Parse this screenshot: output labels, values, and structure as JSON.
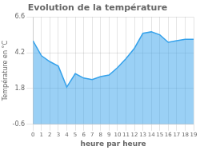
{
  "chart_data": {
    "type": "area",
    "title": "Evolution de la température",
    "x_label": "heure par heure",
    "y_label": "Température en °C",
    "x": [
      0,
      1,
      2,
      3,
      4,
      5,
      6,
      7,
      8,
      9,
      10,
      11,
      12,
      13,
      14,
      15,
      16,
      17,
      18,
      19
    ],
    "values": [
      5.0,
      4.0,
      3.6,
      3.3,
      1.9,
      2.8,
      2.5,
      2.4,
      2.6,
      2.7,
      3.2,
      3.8,
      4.5,
      5.5,
      5.6,
      5.4,
      4.9,
      5.0,
      5.1,
      5.1
    ],
    "xlim": [
      0,
      19
    ],
    "xticks": [
      0,
      1,
      2,
      3,
      4,
      5,
      6,
      7,
      8,
      9,
      10,
      11,
      12,
      13,
      14,
      15,
      16,
      17,
      18,
      19
    ],
    "ylim": [
      -0.6,
      6.6
    ],
    "yticks": [
      -0.6,
      1.8,
      4.2,
      6.6
    ],
    "grid": true
  }
}
